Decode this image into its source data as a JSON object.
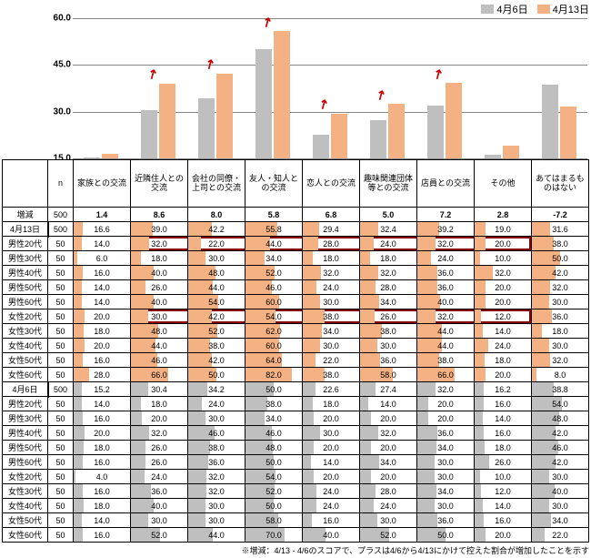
{
  "legend": [
    {
      "label": "4月6日",
      "color": "#bfbfbf"
    },
    {
      "label": "4月13日",
      "color": "#f4b183"
    }
  ],
  "colors": {
    "apr6": "#bfbfbf",
    "apr13": "#f4b183",
    "highlight": "#8b0000",
    "arrow": "#c00000"
  },
  "chart": {
    "ymin": 15,
    "ymax": 60,
    "ystep": 15,
    "categories": [
      "家族との交流",
      "近隣住人との交流",
      "会社の同僚・上司との交流",
      "友人・知人との交流",
      "恋人との交流",
      "趣味関連団体等との交流",
      "店員との交流",
      "その他",
      "あてはまるものはない"
    ],
    "apr6": [
      15.2,
      30.4,
      34.2,
      50.0,
      22.6,
      27.4,
      32.0,
      16.2,
      38.8
    ],
    "apr13": [
      16.6,
      39.0,
      42.2,
      55.8,
      29.4,
      32.4,
      39.2,
      19.0,
      31.6
    ],
    "arrows": [
      false,
      true,
      true,
      true,
      true,
      true,
      true,
      false,
      false
    ]
  },
  "table": {
    "headers": [
      "",
      "n",
      "家族との交流",
      "近隣住人との交流",
      "会社の同僚・上司との交流",
      "友人・知人との交流",
      "恋人との交流",
      "趣味関連団体等との交流",
      "店員との交流",
      "その他",
      "あてはまるものはない"
    ],
    "rows": [
      {
        "label": "増減",
        "n": 500,
        "vals": [
          1.4,
          8.6,
          8.0,
          5.8,
          6.8,
          5.0,
          7.2,
          2.8,
          -7.2
        ],
        "fill": null,
        "bold": true
      },
      {
        "label": "4月13日",
        "n": 500,
        "vals": [
          16.6,
          39.0,
          42.2,
          55.8,
          29.4,
          32.4,
          39.2,
          19.0,
          31.6
        ],
        "fill": "apr13",
        "boxlabel": true
      },
      {
        "label": "男性20代",
        "n": 50,
        "vals": [
          14.0,
          32.0,
          22.0,
          44.0,
          28.0,
          24.0,
          32.0,
          20.0,
          38.0
        ],
        "fill": "apr13",
        "hl": true
      },
      {
        "label": "男性30代",
        "n": 50,
        "vals": [
          6.0,
          18.0,
          30.0,
          34.0,
          18.0,
          18.0,
          24.0,
          10.0,
          50.0
        ],
        "fill": "apr13"
      },
      {
        "label": "男性40代",
        "n": 50,
        "vals": [
          16.0,
          40.0,
          48.0,
          52.0,
          32.0,
          32.0,
          36.0,
          32.0,
          42.0
        ],
        "fill": "apr13"
      },
      {
        "label": "男性50代",
        "n": 50,
        "vals": [
          14.0,
          26.0,
          44.0,
          46.0,
          24.0,
          28.0,
          36.0,
          20.0,
          32.0
        ],
        "fill": "apr13"
      },
      {
        "label": "男性60代",
        "n": 50,
        "vals": [
          14.0,
          40.0,
          54.0,
          60.0,
          30.0,
          34.0,
          40.0,
          20.0,
          30.0
        ],
        "fill": "apr13"
      },
      {
        "label": "女性20代",
        "n": 50,
        "vals": [
          20.0,
          30.0,
          42.0,
          54.0,
          38.0,
          26.0,
          32.0,
          12.0,
          36.0
        ],
        "fill": "apr13",
        "hl": true
      },
      {
        "label": "女性30代",
        "n": 50,
        "vals": [
          18.0,
          48.0,
          52.0,
          62.0,
          34.0,
          38.0,
          44.0,
          14.0,
          18.0
        ],
        "fill": "apr13"
      },
      {
        "label": "女性40代",
        "n": 50,
        "vals": [
          20.0,
          44.0,
          38.0,
          60.0,
          30.0,
          30.0,
          44.0,
          24.0,
          30.0
        ],
        "fill": "apr13"
      },
      {
        "label": "女性50代",
        "n": 50,
        "vals": [
          16.0,
          46.0,
          42.0,
          64.0,
          22.0,
          36.0,
          38.0,
          18.0,
          32.0
        ],
        "fill": "apr13"
      },
      {
        "label": "女性60代",
        "n": 50,
        "vals": [
          28.0,
          66.0,
          50.0,
          82.0,
          38.0,
          58.0,
          66.0,
          20.0,
          8.0
        ],
        "fill": "apr13"
      },
      {
        "label": "4月6日",
        "n": 500,
        "vals": [
          15.2,
          30.4,
          34.2,
          50.0,
          22.6,
          27.4,
          32.0,
          16.2,
          38.8
        ],
        "fill": "apr6",
        "boxlabel": true
      },
      {
        "label": "男性20代",
        "n": 50,
        "vals": [
          14.0,
          18.0,
          24.0,
          38.0,
          18.0,
          14.0,
          20.0,
          16.0,
          54.0
        ],
        "fill": "apr6"
      },
      {
        "label": "男性30代",
        "n": 50,
        "vals": [
          16.0,
          20.0,
          30.0,
          34.0,
          20.0,
          20.0,
          20.0,
          14.0,
          48.0
        ],
        "fill": "apr6"
      },
      {
        "label": "男性40代",
        "n": 50,
        "vals": [
          20.0,
          32.0,
          46.0,
          46.0,
          30.0,
          32.0,
          36.0,
          16.0,
          42.0
        ],
        "fill": "apr6"
      },
      {
        "label": "男性50代",
        "n": 50,
        "vals": [
          18.0,
          26.0,
          38.0,
          48.0,
          20.0,
          20.0,
          34.0,
          18.0,
          46.0
        ],
        "fill": "apr6"
      },
      {
        "label": "男性60代",
        "n": 50,
        "vals": [
          16.0,
          26.0,
          36.0,
          50.0,
          14.0,
          34.0,
          30.0,
          26.0,
          42.0
        ],
        "fill": "apr6"
      },
      {
        "label": "女性20代",
        "n": 50,
        "vals": [
          4.0,
          24.0,
          32.0,
          54.0,
          20.0,
          20.0,
          30.0,
          10.0,
          30.0
        ],
        "fill": "apr6"
      },
      {
        "label": "女性30代",
        "n": 50,
        "vals": [
          16.0,
          36.0,
          32.0,
          52.0,
          24.0,
          28.0,
          34.0,
          12.0,
          40.0
        ],
        "fill": "apr6"
      },
      {
        "label": "女性40代",
        "n": 50,
        "vals": [
          18.0,
          40.0,
          30.0,
          50.0,
          24.0,
          24.0,
          30.0,
          14.0,
          30.0
        ],
        "fill": "apr6"
      },
      {
        "label": "女性50代",
        "n": 50,
        "vals": [
          14.0,
          30.0,
          30.0,
          58.0,
          16.0,
          30.0,
          36.0,
          16.0,
          34.0
        ],
        "fill": "apr6"
      },
      {
        "label": "女性60代",
        "n": 50,
        "vals": [
          16.0,
          52.0,
          44.0,
          70.0,
          40.0,
          52.0,
          50.0,
          20.0,
          22.0
        ],
        "fill": "apr6"
      }
    ],
    "maxval": 100
  },
  "footnote": "※増減：4/13 - 4/6のスコアで、プラスは4/6から4/13にかけて控えた割合が増加したことを示す"
}
